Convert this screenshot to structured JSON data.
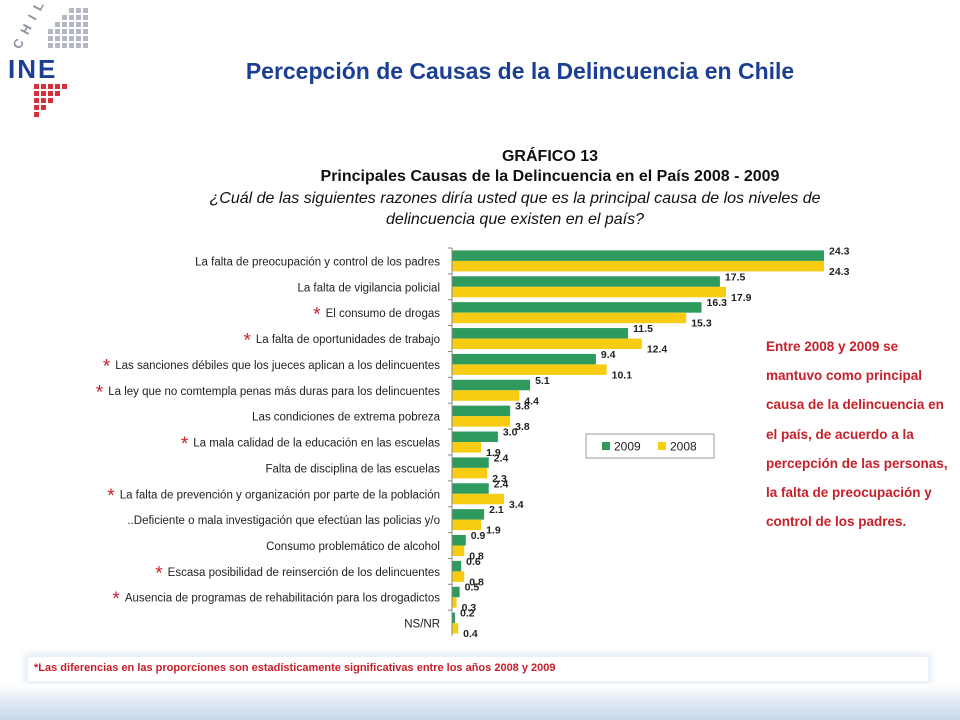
{
  "header": {
    "logo_text_top": "CHILE",
    "logo_text_main": "INE",
    "title": "Percepción de Causas de la Delincuencia en Chile"
  },
  "chart_title": {
    "number": "GRÁFICO 13",
    "subtitle": "Principales Causas de la Delincuencia en el País 2008 - 2009",
    "question": "¿Cuál de las siguientes razones diría usted que es la principal causa de los niveles de delincuencia que existen en el país?"
  },
  "chart_data": {
    "type": "bar",
    "orientation": "horizontal",
    "categories": [
      "La falta de preocupación y control de los padres",
      "La falta de vigilancia policial",
      "El consumo de drogas",
      "La falta de oportunidades de trabajo",
      "Las sanciones débiles que los jueces aplican a los delincuentes",
      "La ley que no comtempla penas más duras para los delincuentes",
      "Las condiciones de extrema pobreza",
      "La mala calidad de la educación en las escuelas",
      "Falta de disciplina de las escuelas",
      "La falta de prevención y organización por parte de la población",
      "..Deficiente o mala investigación que efectúan las policias y/o",
      "Consumo problemático de alcohol",
      "Escasa posibilidad de reinserción de los delincuentes",
      "Ausencia de programas de rehabilitación para los drogadictos",
      "NS/NR"
    ],
    "significant": [
      false,
      false,
      true,
      true,
      true,
      true,
      false,
      true,
      false,
      true,
      false,
      false,
      true,
      true,
      false
    ],
    "series": [
      {
        "name": "2009",
        "color": "#2e9a5e",
        "values": [
          24.3,
          17.5,
          16.3,
          11.5,
          9.4,
          5.1,
          3.8,
          3.0,
          2.4,
          2.4,
          2.1,
          0.9,
          0.6,
          0.5,
          0.2
        ],
        "labels": [
          "24.3",
          "17.5",
          "16.3",
          "11.5",
          "9.4",
          "5.1",
          "3.8",
          "3.0",
          "2.4",
          "2.4",
          "2.1",
          "0.9",
          "0.6",
          "0.5",
          "0.2"
        ]
      },
      {
        "name": "2008",
        "color": "#f7cc12",
        "values": [
          24.3,
          17.9,
          15.3,
          12.4,
          10.1,
          4.4,
          3.8,
          1.9,
          2.3,
          3.4,
          1.9,
          0.8,
          0.8,
          0.3,
          0.4
        ],
        "labels": [
          "24.3",
          "17.9",
          "15.3",
          "12.4",
          "10.1",
          "4.4",
          "3.8",
          "1.9",
          "2.3",
          "3.4",
          "1.9",
          "0.8",
          "0.8",
          "0.3",
          "0.4"
        ]
      }
    ],
    "xlim": [
      0,
      24.3
    ],
    "legend": "inside, lower right",
    "grid": false
  },
  "marker": "*",
  "sidenote": "Entre 2008 y 2009 se mantuvo como principal causa de la delincuencia en el país, de acuerdo a la percepción de las personas, la falta de preocupación y control de los padres.",
  "footnote": "*Las diferencias en las proporciones son estadísticamente  significativas entre  los años 2008 y 2009"
}
